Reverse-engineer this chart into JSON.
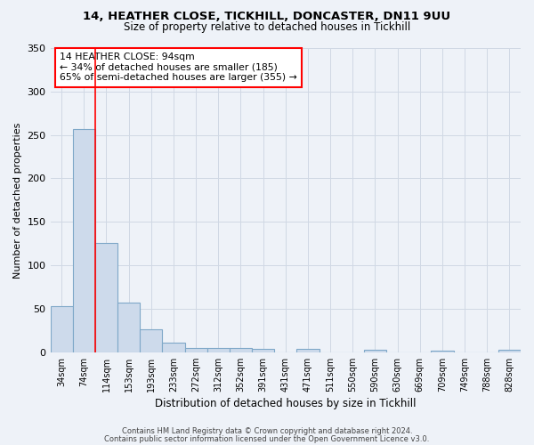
{
  "title_line1": "14, HEATHER CLOSE, TICKHILL, DONCASTER, DN11 9UU",
  "title_line2": "Size of property relative to detached houses in Tickhill",
  "xlabel": "Distribution of detached houses by size in Tickhill",
  "ylabel": "Number of detached properties",
  "footer_line1": "Contains HM Land Registry data © Crown copyright and database right 2024.",
  "footer_line2": "Contains public sector information licensed under the Open Government Licence v3.0.",
  "bar_labels": [
    "34sqm",
    "74sqm",
    "114sqm",
    "153sqm",
    "193sqm",
    "233sqm",
    "272sqm",
    "312sqm",
    "352sqm",
    "391sqm",
    "431sqm",
    "471sqm",
    "511sqm",
    "550sqm",
    "590sqm",
    "630sqm",
    "669sqm",
    "709sqm",
    "749sqm",
    "788sqm",
    "828sqm"
  ],
  "bar_values": [
    53,
    257,
    126,
    57,
    26,
    11,
    5,
    5,
    5,
    4,
    0,
    4,
    0,
    0,
    3,
    0,
    0,
    2,
    0,
    0,
    3
  ],
  "bar_color": "#cddaeb",
  "bar_edge_color": "#7fa8c8",
  "grid_color": "#d0d8e4",
  "annotation_text": "14 HEATHER CLOSE: 94sqm\n← 34% of detached houses are smaller (185)\n65% of semi-detached houses are larger (355) →",
  "annotation_box_color": "white",
  "annotation_box_edge_color": "red",
  "vline_color": "red",
  "vline_x": 1.5,
  "ylim": [
    0,
    350
  ],
  "yticks": [
    0,
    50,
    100,
    150,
    200,
    250,
    300,
    350
  ],
  "bg_color": "#eef2f8"
}
